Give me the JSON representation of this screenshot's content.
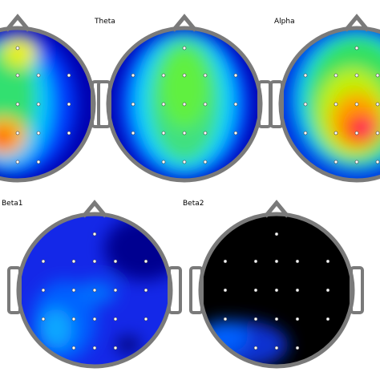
{
  "panels": [
    {
      "label": "Theta"
    },
    {
      "label": "Alpha"
    },
    {
      "label": "Beta1"
    },
    {
      "label": "Beta2"
    }
  ]
}
